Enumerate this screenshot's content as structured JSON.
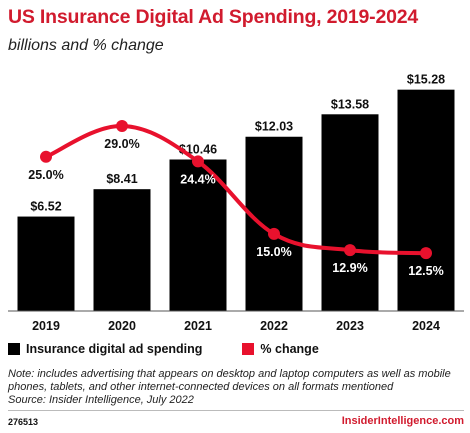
{
  "title": "US Insurance Digital Ad Spending, 2019-2024",
  "subtitle": "billions and % change",
  "chart_data": {
    "type": "bar",
    "categories": [
      "2019",
      "2020",
      "2021",
      "2022",
      "2023",
      "2024"
    ],
    "series": [
      {
        "name": "Insurance digital ad spending",
        "type": "bar",
        "values": [
          6.52,
          8.41,
          10.46,
          12.03,
          13.58,
          15.28
        ],
        "labels": [
          "$6.52",
          "$8.41",
          "$10.46",
          "$12.03",
          "$13.58",
          "$15.28"
        ],
        "color": "#000000"
      },
      {
        "name": "% change",
        "type": "line",
        "values": [
          25.0,
          29.0,
          24.4,
          15.0,
          12.9,
          12.5
        ],
        "labels": [
          "25.0%",
          "29.0%",
          "24.4%",
          "15.0%",
          "12.9%",
          "12.5%"
        ],
        "color": "#e8112d"
      }
    ],
    "bar_ylim": [
      0,
      16.5
    ],
    "line_ylim": [
      5,
      36
    ],
    "legend_position": "bottom-left",
    "grid": false
  },
  "legend": {
    "bar_label": "Insurance digital ad spending",
    "line_label": "% change"
  },
  "note": "Note: includes advertising that appears on desktop and laptop computers as well as mobile phones, tablets, and other internet-connected devices on all formats mentioned",
  "source": "Source: Insider Intelligence, July 2022",
  "footer": {
    "id": "276513",
    "brand": "InsiderIntelligence.com"
  },
  "colors": {
    "accent": "#d11b2e",
    "bar": "#000000",
    "line": "#e8112d"
  }
}
